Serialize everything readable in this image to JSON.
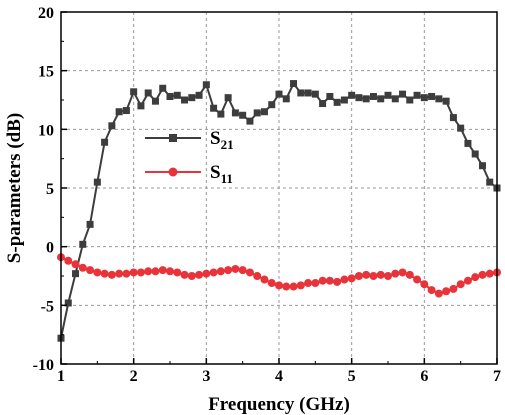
{
  "chart_data": {
    "type": "line",
    "xlabel": "Frequency (GHz)",
    "ylabel": "S-parameters (dB)",
    "xlim": [
      1,
      7
    ],
    "ylim": [
      -10,
      20
    ],
    "xticks": [
      1,
      2,
      3,
      4,
      5,
      6,
      7
    ],
    "yticks": [
      -10,
      -5,
      0,
      5,
      10,
      15,
      20
    ],
    "xtick_labels": [
      "1",
      "2",
      "3",
      "4",
      "5",
      "6",
      "7"
    ],
    "ytick_labels": [
      "-10",
      "-5",
      "0",
      "5",
      "10",
      "15",
      "20"
    ],
    "grid": true,
    "legend_position": "left-middle",
    "series": [
      {
        "name_main": "S",
        "name_sub": "21",
        "color": "#3d3d3d",
        "marker": "square",
        "x": [
          1.0,
          1.1,
          1.2,
          1.3,
          1.4,
          1.5,
          1.6,
          1.7,
          1.8,
          1.9,
          2.0,
          2.1,
          2.2,
          2.3,
          2.4,
          2.5,
          2.6,
          2.7,
          2.8,
          2.9,
          3.0,
          3.1,
          3.2,
          3.3,
          3.4,
          3.5,
          3.6,
          3.7,
          3.8,
          3.9,
          4.0,
          4.1,
          4.2,
          4.3,
          4.4,
          4.5,
          4.6,
          4.7,
          4.8,
          4.9,
          5.0,
          5.1,
          5.2,
          5.3,
          5.4,
          5.5,
          5.6,
          5.7,
          5.8,
          5.9,
          6.0,
          6.1,
          6.2,
          6.3,
          6.4,
          6.5,
          6.6,
          6.7,
          6.8,
          6.9,
          7.0
        ],
        "y": [
          -7.8,
          -4.8,
          -2.3,
          0.2,
          1.9,
          5.5,
          8.9,
          10.3,
          11.5,
          11.6,
          13.2,
          12.0,
          13.1,
          12.4,
          13.5,
          12.8,
          12.9,
          12.5,
          12.7,
          12.9,
          13.8,
          11.8,
          11.3,
          12.7,
          11.4,
          11.2,
          10.7,
          11.4,
          11.5,
          12.1,
          13.0,
          12.6,
          13.9,
          13.1,
          13.1,
          13.0,
          12.2,
          12.8,
          12.3,
          12.5,
          12.9,
          12.7,
          12.6,
          12.8,
          12.6,
          12.9,
          12.6,
          13.0,
          12.5,
          12.9,
          12.7,
          12.8,
          12.6,
          12.4,
          11.0,
          10.1,
          8.8,
          7.9,
          6.9,
          5.5,
          5.0
        ]
      },
      {
        "name_main": "S",
        "name_sub": "11",
        "color": "#e8333a",
        "marker": "circle",
        "x": [
          1.0,
          1.1,
          1.2,
          1.3,
          1.4,
          1.5,
          1.6,
          1.7,
          1.8,
          1.9,
          2.0,
          2.1,
          2.2,
          2.3,
          2.4,
          2.5,
          2.6,
          2.7,
          2.8,
          2.9,
          3.0,
          3.1,
          3.2,
          3.3,
          3.4,
          3.5,
          3.6,
          3.7,
          3.8,
          3.9,
          4.0,
          4.1,
          4.2,
          4.3,
          4.4,
          4.5,
          4.6,
          4.7,
          4.8,
          4.9,
          5.0,
          5.1,
          5.2,
          5.3,
          5.4,
          5.5,
          5.6,
          5.7,
          5.8,
          5.9,
          6.0,
          6.1,
          6.2,
          6.3,
          6.4,
          6.5,
          6.6,
          6.7,
          6.8,
          6.9,
          7.0
        ],
        "y": [
          -0.9,
          -1.2,
          -1.5,
          -1.8,
          -2.0,
          -2.2,
          -2.3,
          -2.4,
          -2.3,
          -2.3,
          -2.2,
          -2.2,
          -2.1,
          -2.1,
          -2.0,
          -2.1,
          -2.2,
          -2.4,
          -2.5,
          -2.4,
          -2.3,
          -2.2,
          -2.1,
          -2.0,
          -1.9,
          -2.0,
          -2.2,
          -2.5,
          -2.8,
          -3.1,
          -3.3,
          -3.4,
          -3.4,
          -3.3,
          -3.1,
          -3.1,
          -2.9,
          -2.9,
          -3.0,
          -2.8,
          -2.7,
          -2.5,
          -2.4,
          -2.5,
          -2.4,
          -2.5,
          -2.3,
          -2.2,
          -2.4,
          -2.8,
          -3.2,
          -3.7,
          -4.0,
          -3.8,
          -3.6,
          -3.2,
          -2.9,
          -2.6,
          -2.4,
          -2.3,
          -2.2
        ]
      }
    ]
  }
}
